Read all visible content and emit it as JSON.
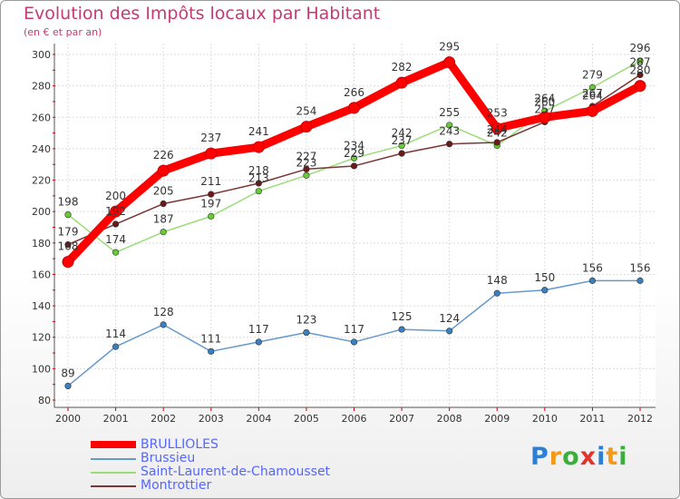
{
  "chart_data": {
    "type": "line",
    "title": "Evolution des Impôts locaux par Habitant",
    "subtitle": "(en € et par an)",
    "xlabel": "",
    "ylabel": "",
    "categories": [
      "2000",
      "2001",
      "2002",
      "2003",
      "2004",
      "2005",
      "2006",
      "2007",
      "2008",
      "2009",
      "2010",
      "2011",
      "2012"
    ],
    "ylim": [
      80,
      300
    ],
    "yticks": [
      80,
      100,
      120,
      140,
      160,
      180,
      200,
      220,
      240,
      260,
      280,
      300
    ],
    "grid": true,
    "legend_position": "bottom-left",
    "series": [
      {
        "name": "BRULLIOLES",
        "color": "#ff0000",
        "marker": "#ff0000",
        "values": [
          168,
          200,
          226,
          237,
          241,
          254,
          266,
          282,
          295,
          253,
          260,
          264,
          280
        ]
      },
      {
        "name": "Brussieu",
        "color": "#6699cc",
        "marker": "#3a7fc0",
        "values": [
          89,
          114,
          128,
          111,
          117,
          123,
          117,
          125,
          124,
          148,
          150,
          156,
          156
        ]
      },
      {
        "name": "Saint-Laurent-de-Chamousset",
        "color": "#99dd77",
        "marker": "#66cc33",
        "values": [
          198,
          174,
          187,
          197,
          213,
          223,
          234,
          242,
          255,
          242,
          264,
          279,
          296
        ]
      },
      {
        "name": "Montrottier",
        "color": "#7a3535",
        "marker": "#6a1a1a",
        "values": [
          179,
          192,
          205,
          211,
          218,
          227,
          229,
          237,
          243,
          244,
          257,
          267,
          287
        ]
      }
    ]
  },
  "logo": {
    "letters": [
      "P",
      "r",
      "o",
      "x",
      "i",
      "t",
      "i"
    ]
  }
}
